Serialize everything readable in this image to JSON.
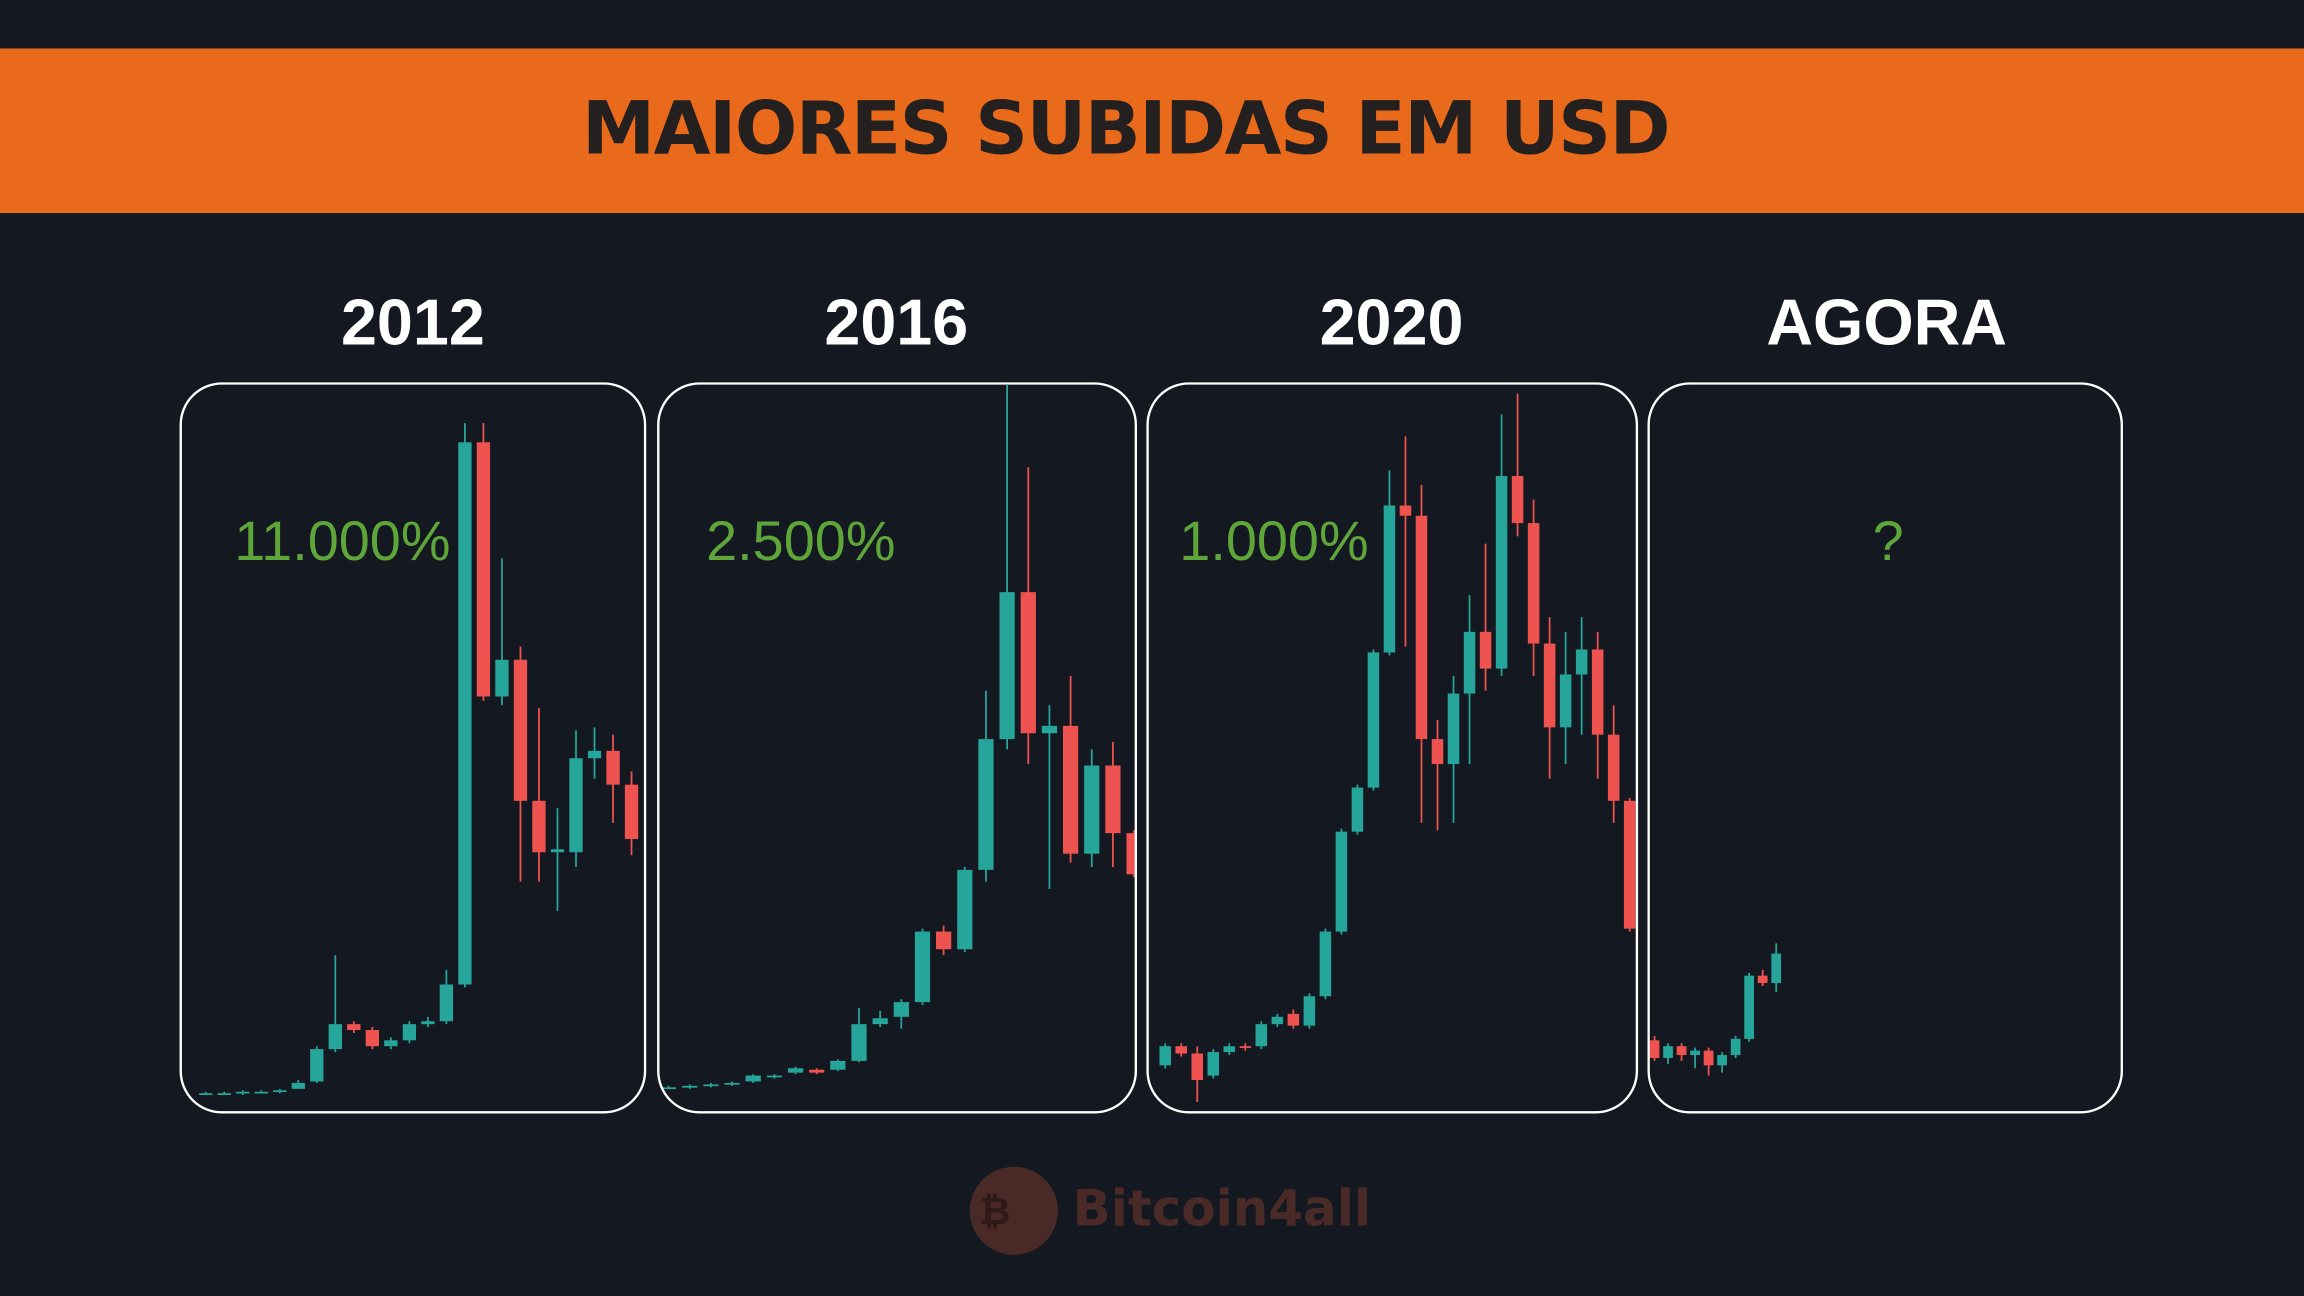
{
  "header": {
    "title": "MAIORES SUBIDAS EM USD"
  },
  "watermark": "Bitcoin4all",
  "chart_data": [
    {
      "type": "candlestick",
      "title": "2012",
      "annotation": "11.000%",
      "ylim": [
        0,
        496
      ],
      "up_color": "#26a69a",
      "down_color": "#ef5350",
      "open": [
        13,
        13,
        13,
        14,
        14,
        16,
        21,
        43,
        60,
        56,
        45,
        49,
        60,
        62,
        87,
        456,
        283,
        308,
        212,
        177,
        177,
        241,
        246,
        223
      ],
      "close": [
        13,
        13,
        14,
        14,
        15,
        20,
        43,
        60,
        56,
        45,
        49,
        60,
        62,
        87,
        456,
        283,
        308,
        212,
        177,
        179,
        241,
        246,
        223,
        186
      ],
      "high": [
        14,
        14,
        15,
        15,
        16,
        22,
        45,
        107,
        62,
        58,
        51,
        62,
        65,
        97,
        469,
        469,
        377,
        317,
        275,
        207,
        260,
        262,
        257,
        232
      ],
      "low": [
        12,
        12,
        12,
        13,
        13,
        16,
        20,
        41,
        54,
        43,
        43,
        47,
        58,
        60,
        85,
        280,
        277,
        157,
        157,
        137,
        167,
        227,
        197,
        175
      ]
    },
    {
      "type": "candlestick",
      "title": "2016",
      "annotation": "2.500%",
      "ylim": [
        0,
        496
      ],
      "up_color": "#26a69a",
      "down_color": "#ef5350",
      "open": [
        17,
        17,
        18,
        19,
        21,
        24,
        27,
        29,
        29,
        35,
        60,
        65,
        75,
        123,
        111,
        165,
        254,
        354,
        258,
        263,
        176,
        236,
        190
      ],
      "close": [
        17,
        18,
        19,
        20,
        25,
        25,
        30,
        27,
        35,
        60,
        64,
        75,
        123,
        111,
        165,
        254,
        354,
        258,
        263,
        176,
        236,
        190,
        162
      ],
      "high": [
        18,
        19,
        20,
        21,
        26,
        26,
        31,
        30,
        36,
        71,
        69,
        77,
        125,
        127,
        167,
        287,
        495,
        439,
        277,
        297,
        247,
        252,
        192
      ],
      "low": [
        16,
        16,
        17,
        18,
        20,
        23,
        26,
        26,
        28,
        34,
        58,
        57,
        73,
        107,
        109,
        157,
        247,
        237,
        152,
        170,
        167,
        167,
        160
      ]
    },
    {
      "type": "candlestick",
      "title": "2020",
      "annotation": "1.000%",
      "ylim": [
        0,
        496
      ],
      "up_color": "#26a69a",
      "down_color": "#ef5350",
      "open": [
        32,
        45,
        40,
        25,
        41,
        45,
        45,
        60,
        67,
        59,
        79,
        123,
        191,
        221,
        313,
        413,
        406,
        254,
        237,
        285,
        327,
        302,
        433,
        401,
        319,
        262,
        298,
        315,
        257,
        212
      ],
      "close": [
        45,
        40,
        22,
        41,
        45,
        44,
        60,
        65,
        59,
        79,
        123,
        191,
        221,
        313,
        413,
        406,
        254,
        237,
        285,
        327,
        302,
        433,
        401,
        319,
        262,
        298,
        315,
        257,
        212,
        125
      ],
      "high": [
        47,
        47,
        45,
        43,
        47,
        47,
        62,
        67,
        70,
        81,
        125,
        193,
        223,
        315,
        437,
        460,
        427,
        267,
        297,
        352,
        387,
        475,
        489,
        417,
        337,
        327,
        337,
        327,
        277,
        214
      ],
      "low": [
        30,
        38,
        7,
        23,
        39,
        42,
        43,
        58,
        57,
        57,
        77,
        121,
        189,
        219,
        311,
        317,
        197,
        192,
        197,
        237,
        287,
        297,
        392,
        297,
        227,
        237,
        257,
        227,
        197,
        123
      ]
    },
    {
      "type": "candlestick",
      "title": "AGORA",
      "annotation": "?",
      "ylim": [
        0,
        496
      ],
      "up_color": "#26a69a",
      "down_color": "#ef5350",
      "open": [
        49,
        37,
        45,
        39,
        42,
        32,
        39,
        50,
        93,
        88
      ],
      "close": [
        37,
        45,
        39,
        42,
        32,
        39,
        50,
        93,
        88,
        108
      ],
      "high": [
        52,
        47,
        47,
        44,
        44,
        41,
        52,
        95,
        97,
        115
      ],
      "low": [
        35,
        33,
        35,
        30,
        25,
        27,
        37,
        48,
        86,
        82
      ]
    }
  ]
}
